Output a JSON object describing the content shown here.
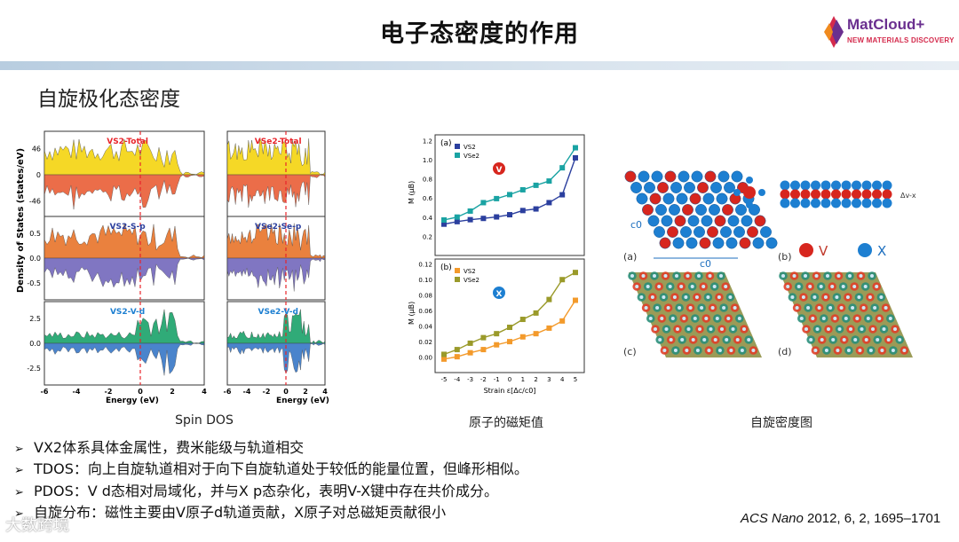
{
  "header": {
    "title": "电子态密度的作用",
    "logo_text": "MatCloud+",
    "logo_sub": "NEW MATERIALS DISCOVERY",
    "logo_tm": "TM"
  },
  "subtitle": "自旋极化态密度",
  "dos": {
    "ylabel": "Density of States (states/eV)",
    "xlabel": "Energy (eV)",
    "xticks": [
      "-6",
      "-4",
      "-2",
      "0",
      "2",
      "4"
    ],
    "left": {
      "labels": [
        "VS2-Total",
        "VS2-S-p",
        "VS2-V-d"
      ]
    },
    "right": {
      "labels": [
        "VSe2-Total",
        "VSe2-Se-p",
        "VSe2-V-d"
      ]
    },
    "row_yticks": [
      [
        "46",
        "0",
        "-46"
      ],
      [
        "0.5",
        "0.0",
        "-0.5"
      ],
      [
        "2.5",
        "0.0",
        "-2.5"
      ]
    ],
    "caption": "Spin DOS"
  },
  "moment": {
    "caption": "原子的磁矩值",
    "panel_a": {
      "tag": "(a)",
      "ylabel": "M (μB)",
      "yticks": [
        "0.2",
        "0.4",
        "0.6",
        "0.8",
        "1.0",
        "1.2"
      ],
      "legend": [
        "VS2",
        "VSe2"
      ],
      "marker": "V"
    },
    "panel_b": {
      "tag": "(b)",
      "ylabel": "M (μB)",
      "yticks": [
        "0.00",
        "0.02",
        "0.04",
        "0.06",
        "0.08",
        "0.10",
        "0.12"
      ],
      "legend": [
        "VS2",
        "VSe2"
      ],
      "marker": "X"
    },
    "xticks": [
      "-5",
      "-4",
      "-3",
      "-2",
      "-1",
      "0",
      "1",
      "2",
      "3",
      "4",
      "5"
    ],
    "xlabel": "Strain ε[Δc/c0]"
  },
  "spin_density": {
    "caption": "自旋密度图",
    "labels": [
      "(a)",
      "(b)",
      "(c)",
      "(d)"
    ],
    "legend_v": "V",
    "legend_x": "X",
    "c0": "c0",
    "dvx": "Δv-x"
  },
  "bullets": [
    "VX2体系具体金属性，费米能级与轨道相交",
    "TDOS：向上自旋轨道相对于向下自旋轨道处于较低的能量位置，但峰形相似。",
    "PDOS：V d态相对局域化，并与X p态杂化，表明V-X键中存在共价成分。",
    "自旋分布：磁性主要由V原子d轨道贡献，X原子对总磁矩贡献很小"
  ],
  "citation": {
    "journal": "ACS Nano",
    "rest": " 2012, 6, 2, 1695–1701"
  },
  "watermark": "大数跨境",
  "colors": {
    "bar": "#c9d8e6",
    "title_purple": "#6a2f8f",
    "accent_red": "#d42a4c",
    "vs2_blue": "#2b3f9e",
    "vse2_teal": "#1aa3a3",
    "vs2_orange": "#f39a2b",
    "vse2_olive": "#9a9a2a",
    "atom_red": "#d7261e",
    "atom_blue": "#1d7fd1"
  }
}
